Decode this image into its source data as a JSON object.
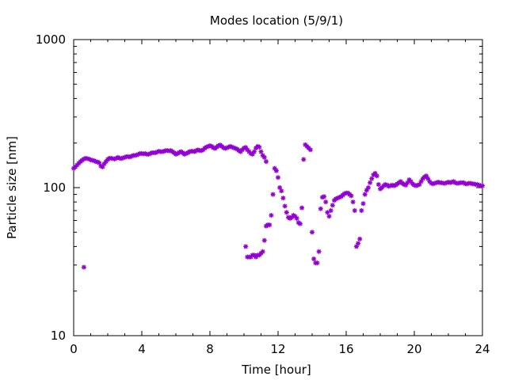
{
  "chart_data": {
    "type": "scatter",
    "title": "Modes location (5/9/1)",
    "xlabel": "Time [hour]",
    "ylabel": "Particle size [nm]",
    "xlim": [
      0,
      24
    ],
    "ylim": [
      10,
      1000
    ],
    "yscale": "log",
    "x_ticks": [
      0,
      4,
      8,
      12,
      16,
      20,
      24
    ],
    "x_tick_labels": [
      "0",
      "4",
      "8",
      "12",
      "16",
      "20",
      "24"
    ],
    "y_ticks": [
      10,
      100,
      1000
    ],
    "y_tick_labels": [
      "10",
      "100",
      "1000"
    ],
    "grid": false,
    "marker": "asterisk",
    "color": "#9400d3",
    "series": [
      {
        "name": "modes",
        "points": [
          [
            0.0,
            135
          ],
          [
            0.1,
            138
          ],
          [
            0.2,
            142
          ],
          [
            0.3,
            146
          ],
          [
            0.4,
            150
          ],
          [
            0.5,
            153
          ],
          [
            0.6,
            156
          ],
          [
            0.7,
            158
          ],
          [
            0.8,
            157
          ],
          [
            0.9,
            156
          ],
          [
            1.0,
            154
          ],
          [
            1.1,
            153
          ],
          [
            1.2,
            152
          ],
          [
            1.3,
            150
          ],
          [
            1.4,
            149
          ],
          [
            1.5,
            147
          ],
          [
            1.6,
            140
          ],
          [
            1.7,
            138
          ],
          [
            1.8,
            145
          ],
          [
            1.9,
            150
          ],
          [
            2.0,
            155
          ],
          [
            2.1,
            158
          ],
          [
            2.2,
            158
          ],
          [
            2.3,
            157
          ],
          [
            2.4,
            156
          ],
          [
            2.5,
            158
          ],
          [
            2.6,
            160
          ],
          [
            2.7,
            158
          ],
          [
            2.8,
            157
          ],
          [
            2.9,
            159
          ],
          [
            3.0,
            160
          ],
          [
            3.1,
            162
          ],
          [
            3.2,
            162
          ],
          [
            3.3,
            161
          ],
          [
            3.4,
            163
          ],
          [
            3.5,
            165
          ],
          [
            3.6,
            165
          ],
          [
            3.7,
            166
          ],
          [
            3.8,
            168
          ],
          [
            3.9,
            170
          ],
          [
            4.0,
            170
          ],
          [
            4.1,
            169
          ],
          [
            4.2,
            170
          ],
          [
            4.3,
            168
          ],
          [
            4.4,
            168
          ],
          [
            4.5,
            170
          ],
          [
            4.6,
            172
          ],
          [
            4.7,
            172
          ],
          [
            4.8,
            172
          ],
          [
            4.9,
            174
          ],
          [
            5.0,
            176
          ],
          [
            5.1,
            175
          ],
          [
            5.2,
            175
          ],
          [
            5.3,
            176
          ],
          [
            5.4,
            178
          ],
          [
            5.5,
            178
          ],
          [
            5.6,
            177
          ],
          [
            5.7,
            178
          ],
          [
            5.8,
            175
          ],
          [
            5.9,
            172
          ],
          [
            6.0,
            168
          ],
          [
            6.1,
            170
          ],
          [
            6.2,
            173
          ],
          [
            6.3,
            175
          ],
          [
            6.4,
            172
          ],
          [
            6.5,
            168
          ],
          [
            6.6,
            170
          ],
          [
            6.7,
            172
          ],
          [
            6.8,
            175
          ],
          [
            6.9,
            176
          ],
          [
            7.0,
            176
          ],
          [
            7.1,
            175
          ],
          [
            7.2,
            178
          ],
          [
            7.3,
            180
          ],
          [
            7.4,
            178
          ],
          [
            7.5,
            178
          ],
          [
            7.6,
            180
          ],
          [
            7.7,
            185
          ],
          [
            7.8,
            188
          ],
          [
            7.9,
            190
          ],
          [
            8.0,
            192
          ],
          [
            8.1,
            190
          ],
          [
            8.2,
            186
          ],
          [
            8.3,
            184
          ],
          [
            8.4,
            188
          ],
          [
            8.5,
            192
          ],
          [
            8.6,
            194
          ],
          [
            8.7,
            190
          ],
          [
            8.8,
            186
          ],
          [
            8.9,
            184
          ],
          [
            9.0,
            186
          ],
          [
            9.1,
            188
          ],
          [
            9.2,
            190
          ],
          [
            9.3,
            188
          ],
          [
            9.4,
            186
          ],
          [
            9.5,
            184
          ],
          [
            9.6,
            182
          ],
          [
            9.7,
            178
          ],
          [
            9.8,
            175
          ],
          [
            9.9,
            180
          ],
          [
            10.0,
            185
          ],
          [
            10.1,
            187
          ],
          [
            10.2,
            180
          ],
          [
            10.3,
            175
          ],
          [
            10.4,
            170
          ],
          [
            10.5,
            168
          ],
          [
            10.6,
            175
          ],
          [
            10.7,
            185
          ],
          [
            10.8,
            190
          ],
          [
            10.9,
            188
          ],
          [
            11.0,
            175
          ],
          [
            11.1,
            165
          ],
          [
            11.2,
            160
          ],
          [
            11.3,
            150
          ],
          [
            0.6,
            29
          ],
          [
            10.1,
            40
          ],
          [
            10.2,
            34
          ],
          [
            10.3,
            34
          ],
          [
            10.4,
            34
          ],
          [
            10.5,
            35
          ],
          [
            10.6,
            35
          ],
          [
            10.7,
            34
          ],
          [
            10.8,
            35
          ],
          [
            10.9,
            35
          ],
          [
            11.0,
            36
          ],
          [
            11.1,
            37
          ],
          [
            11.2,
            44
          ],
          [
            11.3,
            55
          ],
          [
            11.4,
            56
          ],
          [
            11.5,
            56
          ],
          [
            11.6,
            65
          ],
          [
            11.7,
            90
          ],
          [
            11.8,
            135
          ],
          [
            11.9,
            130
          ],
          [
            12.0,
            117
          ],
          [
            12.1,
            100
          ],
          [
            12.2,
            95
          ],
          [
            12.3,
            85
          ],
          [
            12.4,
            75
          ],
          [
            12.5,
            68
          ],
          [
            12.6,
            63
          ],
          [
            12.7,
            62
          ],
          [
            12.8,
            63
          ],
          [
            12.9,
            65
          ],
          [
            13.0,
            64
          ],
          [
            13.1,
            62
          ],
          [
            13.2,
            58
          ],
          [
            13.3,
            57
          ],
          [
            13.4,
            73
          ],
          [
            13.5,
            155
          ],
          [
            13.6,
            195
          ],
          [
            13.7,
            190
          ],
          [
            13.8,
            185
          ],
          [
            13.9,
            180
          ],
          [
            14.0,
            50
          ],
          [
            14.1,
            33
          ],
          [
            14.2,
            31
          ],
          [
            14.3,
            31
          ],
          [
            14.4,
            37
          ],
          [
            14.5,
            72
          ],
          [
            14.6,
            86
          ],
          [
            14.7,
            87
          ],
          [
            14.8,
            80
          ],
          [
            14.9,
            68
          ],
          [
            15.0,
            64
          ],
          [
            15.1,
            70
          ],
          [
            15.2,
            76
          ],
          [
            15.3,
            82
          ],
          [
            15.4,
            84
          ],
          [
            15.5,
            85
          ],
          [
            15.6,
            86
          ],
          [
            15.7,
            87
          ],
          [
            15.8,
            89
          ],
          [
            15.9,
            91
          ],
          [
            16.0,
            92
          ],
          [
            16.1,
            92
          ],
          [
            16.2,
            90
          ],
          [
            16.3,
            88
          ],
          [
            16.4,
            80
          ],
          [
            16.5,
            70
          ],
          [
            16.6,
            40
          ],
          [
            16.7,
            42
          ],
          [
            16.8,
            45
          ],
          [
            16.9,
            70
          ],
          [
            17.0,
            78
          ],
          [
            17.1,
            90
          ],
          [
            17.2,
            96
          ],
          [
            17.3,
            100
          ],
          [
            17.4,
            108
          ],
          [
            17.5,
            115
          ],
          [
            17.6,
            122
          ],
          [
            17.7,
            125
          ],
          [
            17.8,
            120
          ],
          [
            17.9,
            105
          ],
          [
            18.0,
            98
          ],
          [
            18.1,
            100
          ],
          [
            18.2,
            103
          ],
          [
            18.3,
            105
          ],
          [
            18.4,
            104
          ],
          [
            18.5,
            102
          ],
          [
            18.6,
            103
          ],
          [
            18.7,
            104
          ],
          [
            18.8,
            103
          ],
          [
            18.9,
            104
          ],
          [
            19.0,
            106
          ],
          [
            19.1,
            108
          ],
          [
            19.2,
            110
          ],
          [
            19.3,
            107
          ],
          [
            19.4,
            105
          ],
          [
            19.5,
            104
          ],
          [
            19.6,
            108
          ],
          [
            19.7,
            113
          ],
          [
            19.8,
            110
          ],
          [
            19.9,
            106
          ],
          [
            20.0,
            104
          ],
          [
            20.1,
            103
          ],
          [
            20.2,
            104
          ],
          [
            20.3,
            105
          ],
          [
            20.4,
            110
          ],
          [
            20.5,
            115
          ],
          [
            20.6,
            118
          ],
          [
            20.7,
            120
          ],
          [
            20.8,
            115
          ],
          [
            20.9,
            110
          ],
          [
            21.0,
            107
          ],
          [
            21.1,
            106
          ],
          [
            21.2,
            107
          ],
          [
            21.3,
            108
          ],
          [
            21.4,
            109
          ],
          [
            21.5,
            108
          ],
          [
            21.6,
            108
          ],
          [
            21.7,
            107
          ],
          [
            21.8,
            107
          ],
          [
            21.9,
            108
          ],
          [
            22.0,
            109
          ],
          [
            22.1,
            108
          ],
          [
            22.2,
            109
          ],
          [
            22.3,
            110
          ],
          [
            22.4,
            108
          ],
          [
            22.5,
            107
          ],
          [
            22.6,
            107
          ],
          [
            22.7,
            108
          ],
          [
            22.8,
            108
          ],
          [
            22.9,
            108
          ],
          [
            23.0,
            106
          ],
          [
            23.1,
            106
          ],
          [
            23.2,
            107
          ],
          [
            23.3,
            107
          ],
          [
            23.4,
            106
          ],
          [
            23.5,
            106
          ],
          [
            23.6,
            105
          ],
          [
            23.7,
            105
          ],
          [
            23.8,
            104
          ],
          [
            23.9,
            103
          ],
          [
            24.0,
            103
          ]
        ]
      }
    ]
  }
}
